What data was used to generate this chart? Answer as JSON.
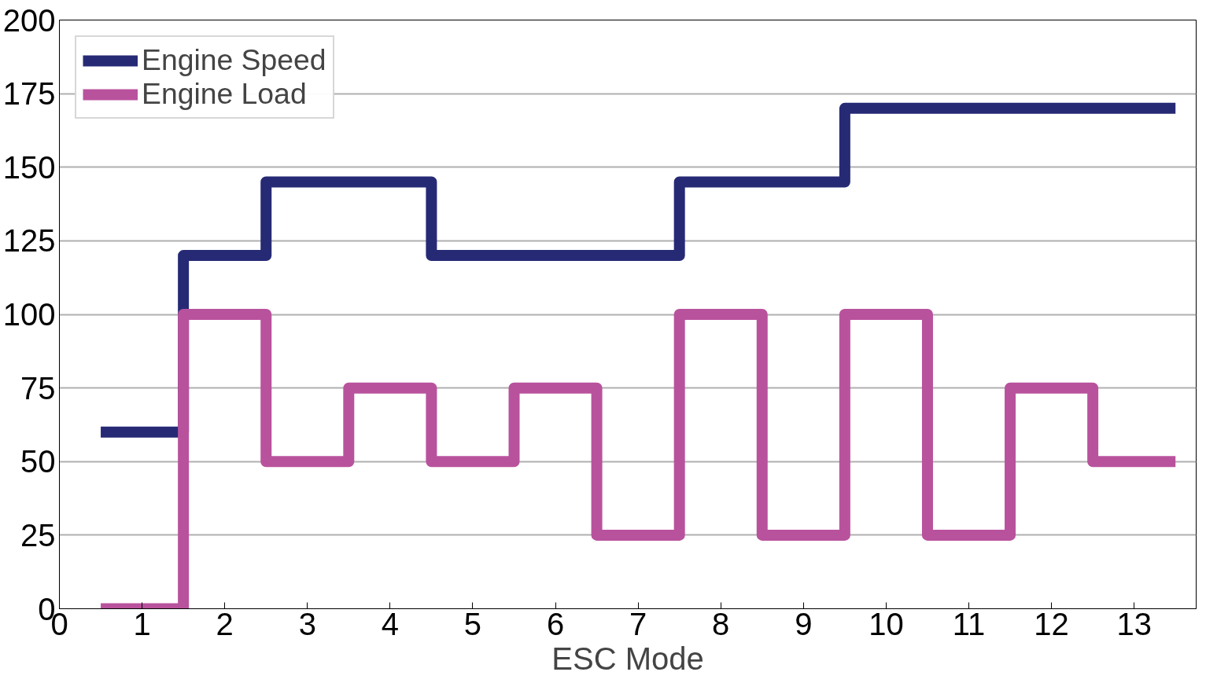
{
  "chart_data": {
    "type": "step",
    "xlabel": "ESC Mode",
    "x": [
      0.5,
      1.5,
      2.5,
      3.5,
      4.5,
      5.5,
      6.5,
      7.5,
      8.5,
      9.5,
      10.5,
      11.5,
      12.5,
      13.5
    ],
    "series": [
      {
        "name": "Engine Speed",
        "color": "#262a75",
        "values": [
          60,
          120,
          145,
          145,
          120,
          120,
          120,
          145,
          145,
          170,
          170,
          170,
          170,
          170
        ]
      },
      {
        "name": "Engine Load",
        "color": "#b9529d",
        "values": [
          0,
          100,
          50,
          75,
          50,
          75,
          25,
          100,
          25,
          100,
          25,
          75,
          50,
          50
        ]
      }
    ],
    "xlim": [
      0,
      13.75
    ],
    "xticks": [
      0,
      1,
      2,
      3,
      4,
      5,
      6,
      7,
      8,
      9,
      10,
      11,
      12,
      13
    ],
    "ylim": [
      0,
      200
    ],
    "yticks": [
      0,
      25,
      50,
      75,
      100,
      125,
      150,
      175,
      200
    ],
    "grid": "y",
    "legend": "top left",
    "line_style": "solid"
  }
}
